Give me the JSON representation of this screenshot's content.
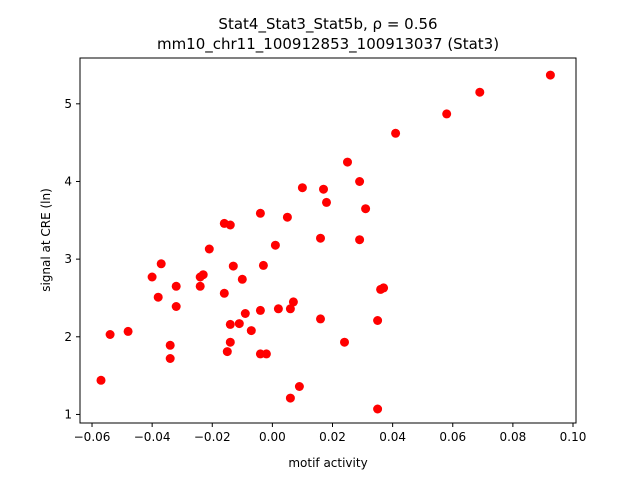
{
  "chart_data": {
    "type": "scatter",
    "title_line1": "Stat4_Stat3_Stat5b, ρ = 0.56",
    "title_line2": "mm10_chr11_100912853_100913037 (Stat3)",
    "xlabel": "motif activity",
    "ylabel": "signal at CRE (ln)",
    "xlim": [
      -0.064,
      0.101
    ],
    "ylim": [
      0.89,
      5.59
    ],
    "xticks": [
      -0.06,
      -0.04,
      -0.02,
      0.0,
      0.02,
      0.04,
      0.06,
      0.08,
      0.1
    ],
    "xtick_labels": [
      "−0.06",
      "−0.04",
      "−0.02",
      "0.00",
      "0.02",
      "0.04",
      "0.06",
      "0.08",
      "0.10"
    ],
    "yticks": [
      1,
      2,
      3,
      4,
      5
    ],
    "ytick_labels": [
      "1",
      "2",
      "3",
      "4",
      "5"
    ],
    "grid": false,
    "marker_color": "#ff0000",
    "points": [
      {
        "x": 0.0925,
        "y": 5.37
      },
      {
        "x": 0.069,
        "y": 5.15
      },
      {
        "x": 0.058,
        "y": 4.87
      },
      {
        "x": 0.041,
        "y": 4.62
      },
      {
        "x": 0.025,
        "y": 4.25
      },
      {
        "x": 0.029,
        "y": 4.0
      },
      {
        "x": 0.01,
        "y": 3.92
      },
      {
        "x": 0.017,
        "y": 3.9
      },
      {
        "x": 0.018,
        "y": 3.73
      },
      {
        "x": 0.031,
        "y": 3.65
      },
      {
        "x": -0.004,
        "y": 3.59
      },
      {
        "x": 0.005,
        "y": 3.54
      },
      {
        "x": -0.016,
        "y": 3.46
      },
      {
        "x": -0.014,
        "y": 3.44
      },
      {
        "x": 0.016,
        "y": 3.27
      },
      {
        "x": 0.029,
        "y": 3.25
      },
      {
        "x": 0.001,
        "y": 3.18
      },
      {
        "x": -0.021,
        "y": 3.13
      },
      {
        "x": -0.037,
        "y": 2.94
      },
      {
        "x": -0.013,
        "y": 2.91
      },
      {
        "x": -0.003,
        "y": 2.92
      },
      {
        "x": -0.04,
        "y": 2.77
      },
      {
        "x": -0.023,
        "y": 2.8
      },
      {
        "x": -0.024,
        "y": 2.77
      },
      {
        "x": -0.01,
        "y": 2.74
      },
      {
        "x": -0.032,
        "y": 2.65
      },
      {
        "x": -0.024,
        "y": 2.65
      },
      {
        "x": 0.037,
        "y": 2.63
      },
      {
        "x": 0.036,
        "y": 2.61
      },
      {
        "x": -0.016,
        "y": 2.56
      },
      {
        "x": -0.038,
        "y": 2.51
      },
      {
        "x": 0.007,
        "y": 2.45
      },
      {
        "x": -0.032,
        "y": 2.39
      },
      {
        "x": 0.002,
        "y": 2.36
      },
      {
        "x": 0.006,
        "y": 2.36
      },
      {
        "x": -0.004,
        "y": 2.34
      },
      {
        "x": -0.009,
        "y": 2.3
      },
      {
        "x": 0.016,
        "y": 2.23
      },
      {
        "x": 0.035,
        "y": 2.21
      },
      {
        "x": -0.011,
        "y": 2.17
      },
      {
        "x": -0.014,
        "y": 2.16
      },
      {
        "x": -0.007,
        "y": 2.08
      },
      {
        "x": -0.048,
        "y": 2.07
      },
      {
        "x": -0.054,
        "y": 2.03
      },
      {
        "x": -0.014,
        "y": 1.93
      },
      {
        "x": 0.024,
        "y": 1.93
      },
      {
        "x": -0.034,
        "y": 1.89
      },
      {
        "x": -0.015,
        "y": 1.81
      },
      {
        "x": -0.004,
        "y": 1.78
      },
      {
        "x": -0.002,
        "y": 1.78
      },
      {
        "x": -0.034,
        "y": 1.72
      },
      {
        "x": -0.057,
        "y": 1.44
      },
      {
        "x": 0.009,
        "y": 1.36
      },
      {
        "x": 0.006,
        "y": 1.21
      },
      {
        "x": 0.035,
        "y": 1.07
      }
    ]
  }
}
